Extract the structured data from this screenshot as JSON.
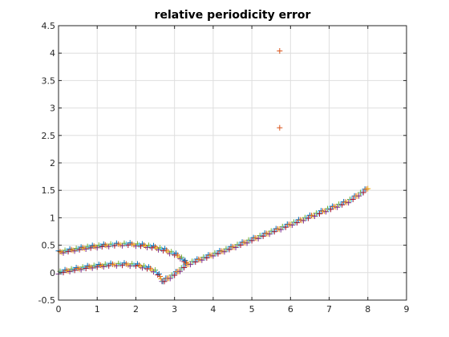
{
  "chart_data": {
    "type": "scatter",
    "title": "relative periodicity error",
    "xlabel": "",
    "ylabel": "",
    "xlim": [
      0,
      9
    ],
    "ylim": [
      -0.5,
      4.5
    ],
    "x_ticks": [
      "0",
      "1",
      "2",
      "3",
      "4",
      "5",
      "6",
      "7",
      "8",
      "9"
    ],
    "y_ticks": [
      "-0.5",
      "0",
      "0.5",
      "1",
      "1.5",
      "2",
      "2.5",
      "3",
      "3.5",
      "4",
      "4.5"
    ],
    "grid": true,
    "marker": "+",
    "series_colors": [
      "#0072BD",
      "#D95319",
      "#EDB120",
      "#7E2F8E",
      "#77AC30",
      "#4DBEEE",
      "#A2142F"
    ],
    "series": [
      {
        "points": [
          [
            0.0,
            0.37
          ],
          [
            0.25,
            0.4
          ],
          [
            0.5,
            0.43
          ],
          [
            0.75,
            0.46
          ],
          [
            1.0,
            0.48
          ],
          [
            1.25,
            0.5
          ],
          [
            1.5,
            0.51
          ],
          [
            1.75,
            0.52
          ],
          [
            2.0,
            0.51
          ],
          [
            2.25,
            0.49
          ],
          [
            2.5,
            0.46
          ],
          [
            2.75,
            0.41
          ],
          [
            3.0,
            0.34
          ],
          [
            3.15,
            0.28
          ],
          [
            3.25,
            0.22
          ],
          [
            3.32,
            0.15
          ]
        ]
      },
      {
        "points": [
          [
            0.0,
            0.0
          ],
          [
            0.25,
            0.04
          ],
          [
            0.5,
            0.07
          ],
          [
            0.75,
            0.1
          ],
          [
            1.0,
            0.12
          ],
          [
            1.25,
            0.14
          ],
          [
            1.5,
            0.15
          ],
          [
            1.75,
            0.15
          ],
          [
            2.0,
            0.14
          ],
          [
            2.25,
            0.1
          ],
          [
            2.5,
            0.03
          ],
          [
            2.6,
            -0.05
          ],
          [
            2.7,
            -0.16
          ]
        ]
      },
      {
        "points": [
          [
            2.7,
            -0.16
          ],
          [
            3.0,
            -0.03
          ],
          [
            3.32,
            0.15
          ],
          [
            3.5,
            0.2
          ],
          [
            4.0,
            0.33
          ],
          [
            4.5,
            0.46
          ],
          [
            5.0,
            0.6
          ],
          [
            5.5,
            0.74
          ],
          [
            6.0,
            0.88
          ],
          [
            6.5,
            1.02
          ],
          [
            7.0,
            1.16
          ],
          [
            7.5,
            1.3
          ],
          [
            8.0,
            1.53
          ]
        ]
      },
      {
        "points": [
          [
            5.72,
            4.04
          ],
          [
            5.72,
            2.64
          ]
        ]
      }
    ]
  }
}
